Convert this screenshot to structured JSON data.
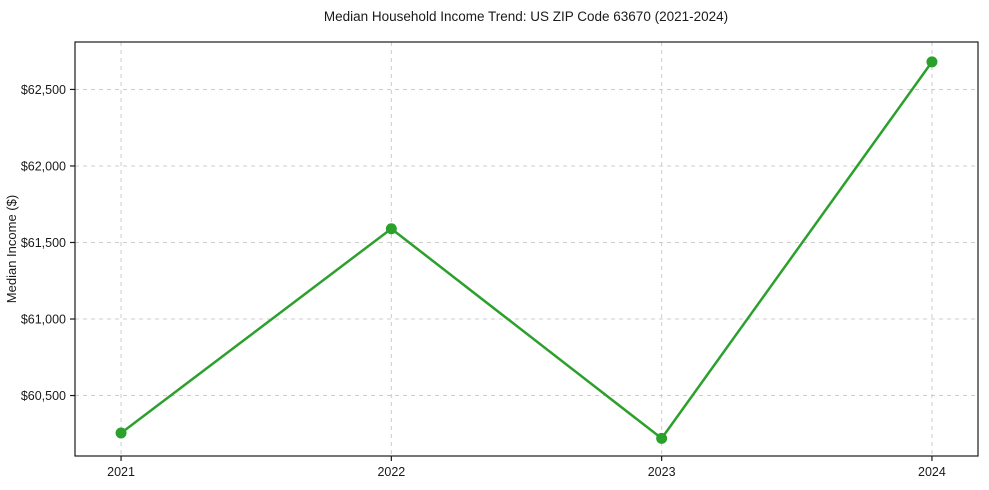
{
  "chart_data": {
    "type": "line",
    "title": "Median Household Income Trend: US ZIP Code 63670 (2021-2024)",
    "xlabel": "",
    "ylabel": "Median Income ($)",
    "categories": [
      "2021",
      "2022",
      "2023",
      "2024"
    ],
    "series": [
      {
        "name": "Median Household Income",
        "values": [
          60255,
          61590,
          60220,
          62680
        ]
      }
    ],
    "value_labels": [
      "$60,255",
      "$61,590",
      "$60,220",
      "$62,680"
    ],
    "yticks": [
      60500,
      61000,
      61500,
      62000,
      62500
    ],
    "ytick_labels": [
      "$60,500",
      "$61,000",
      "$61,500",
      "$62,000",
      "$62,500"
    ],
    "ylim": [
      60105,
      62810
    ],
    "grid": "both, dashed",
    "legend": "none",
    "line_color": "#2ca02c",
    "marker": "circle",
    "marker_radius": 5.5,
    "grid_color": "#cccccc",
    "text_color": "#1a1a1a",
    "background_color": "#ffffff"
  }
}
